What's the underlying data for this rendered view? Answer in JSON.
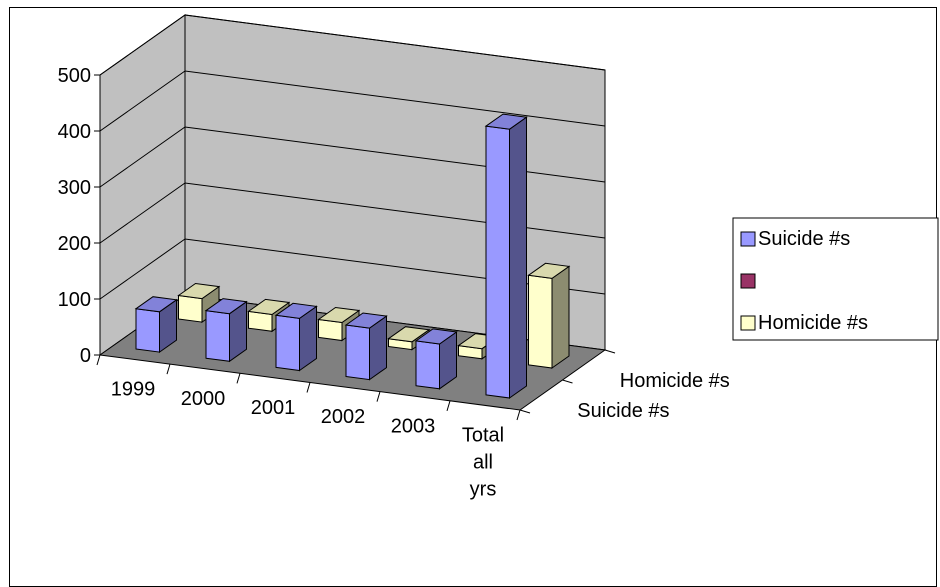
{
  "chart_data": {
    "type": "bar",
    "three_d": true,
    "categories": [
      "1999",
      "2000",
      "2001",
      "2002",
      "2003",
      "Total all yrs"
    ],
    "series": [
      {
        "name": "Suicide #s",
        "values": [
          72,
          85,
          93,
          92,
          80,
          480
        ],
        "color": "#9999ff"
      },
      {
        "name": "",
        "values": [
          0,
          0,
          0,
          0,
          0,
          0
        ],
        "color": "#993366"
      },
      {
        "name": "Homicide #s",
        "values": [
          42,
          30,
          32,
          14,
          18,
          160
        ],
        "color": "#ffffcc"
      }
    ],
    "depth_labels": [
      "Suicide #s",
      "Homicide #s"
    ],
    "y_ticks": [
      "0",
      "100",
      "200",
      "300",
      "400",
      "500"
    ],
    "ylim": [
      0,
      500
    ],
    "wall_color": "#c0c0c0",
    "floor_color": "#808080",
    "legend_position": "right"
  }
}
